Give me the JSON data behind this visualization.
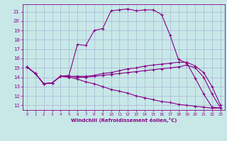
{
  "xlabel": "Windchill (Refroidissement éolien,°C)",
  "bg_color": "#c8e8e8",
  "line_color": "#880088",
  "grid_color": "#9999cc",
  "xlim": [
    -0.5,
    23.5
  ],
  "ylim": [
    10.5,
    21.8
  ],
  "yticks": [
    11,
    12,
    13,
    14,
    15,
    16,
    17,
    18,
    19,
    20,
    21
  ],
  "xticks": [
    0,
    1,
    2,
    3,
    4,
    5,
    6,
    7,
    8,
    9,
    10,
    11,
    12,
    13,
    14,
    15,
    16,
    17,
    18,
    19,
    20,
    21,
    22,
    23
  ],
  "series": [
    {
      "x": [
        0,
        1,
        2,
        3,
        4,
        5,
        6,
        7,
        8,
        9,
        10,
        11,
        12,
        13,
        14,
        15,
        16,
        17,
        18,
        19,
        20,
        21,
        22,
        23
      ],
      "y": [
        15.1,
        14.4,
        13.3,
        13.4,
        14.1,
        14.2,
        17.5,
        17.4,
        19.0,
        19.2,
        21.1,
        21.2,
        21.3,
        21.1,
        21.2,
        21.2,
        20.7,
        18.5,
        15.9,
        15.5,
        13.9,
        12.2,
        10.8,
        10.7
      ]
    },
    {
      "x": [
        0,
        1,
        2,
        3,
        4,
        5,
        6,
        7,
        8,
        9,
        10,
        11,
        12,
        13,
        14,
        15,
        16,
        17,
        18,
        19,
        20,
        21,
        22,
        23
      ],
      "y": [
        15.1,
        14.4,
        13.3,
        13.4,
        14.1,
        14.1,
        14.0,
        14.0,
        14.1,
        14.2,
        14.3,
        14.4,
        14.5,
        14.6,
        14.7,
        14.8,
        14.9,
        15.0,
        15.1,
        15.3,
        15.0,
        14.0,
        12.2,
        10.7
      ]
    },
    {
      "x": [
        0,
        1,
        2,
        3,
        4,
        5,
        6,
        7,
        8,
        9,
        10,
        11,
        12,
        13,
        14,
        15,
        16,
        17,
        18,
        19,
        20,
        21,
        22,
        23
      ],
      "y": [
        15.1,
        14.4,
        13.3,
        13.4,
        14.1,
        14.1,
        14.1,
        14.1,
        14.2,
        14.4,
        14.5,
        14.7,
        14.9,
        15.0,
        15.2,
        15.3,
        15.4,
        15.5,
        15.6,
        15.6,
        15.2,
        14.5,
        13.0,
        11.0
      ]
    },
    {
      "x": [
        0,
        1,
        2,
        3,
        4,
        5,
        6,
        7,
        8,
        9,
        10,
        11,
        12,
        13,
        14,
        15,
        16,
        17,
        18,
        19,
        20,
        21,
        22,
        23
      ],
      "y": [
        15.1,
        14.4,
        13.3,
        13.4,
        14.1,
        14.0,
        13.8,
        13.5,
        13.3,
        13.0,
        12.7,
        12.5,
        12.3,
        12.0,
        11.8,
        11.6,
        11.4,
        11.3,
        11.1,
        11.0,
        10.9,
        10.8,
        10.7,
        10.7
      ]
    }
  ]
}
